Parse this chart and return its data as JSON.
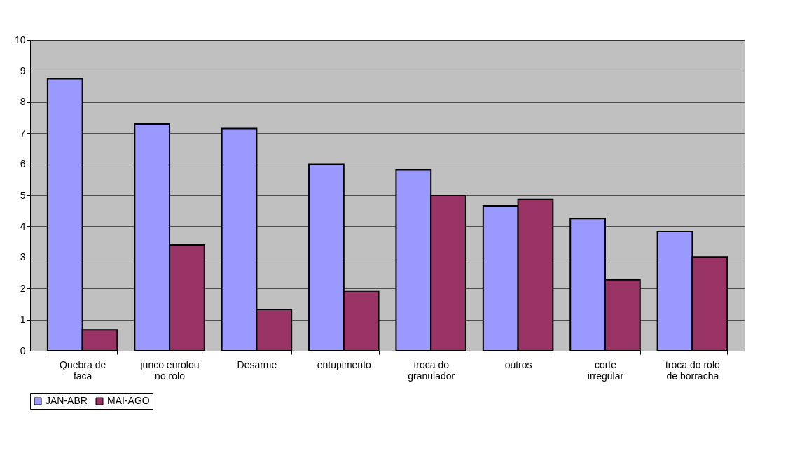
{
  "chart_data": {
    "type": "bar",
    "categories": [
      "Quebra de faca",
      "junco enrolou no rolo",
      "Desarme",
      "entupimento",
      "troca do granulador",
      "outros",
      "corte irregular",
      "troca do rolo de borracha"
    ],
    "series": [
      {
        "name": "JAN-ABR",
        "color": "#9999ff",
        "values": [
          8.75,
          7.3,
          7.15,
          6.0,
          5.82,
          4.66,
          4.25,
          3.83
        ]
      },
      {
        "name": "MAI-AGO",
        "color": "#993366",
        "values": [
          0.67,
          3.4,
          1.33,
          1.92,
          5.0,
          4.87,
          2.28,
          3.01
        ]
      }
    ],
    "ylim": [
      0,
      10
    ],
    "yticks": [
      0,
      1,
      2,
      3,
      4,
      5,
      6,
      7,
      8,
      9,
      10
    ],
    "grid": "y",
    "legend": "bottom"
  }
}
